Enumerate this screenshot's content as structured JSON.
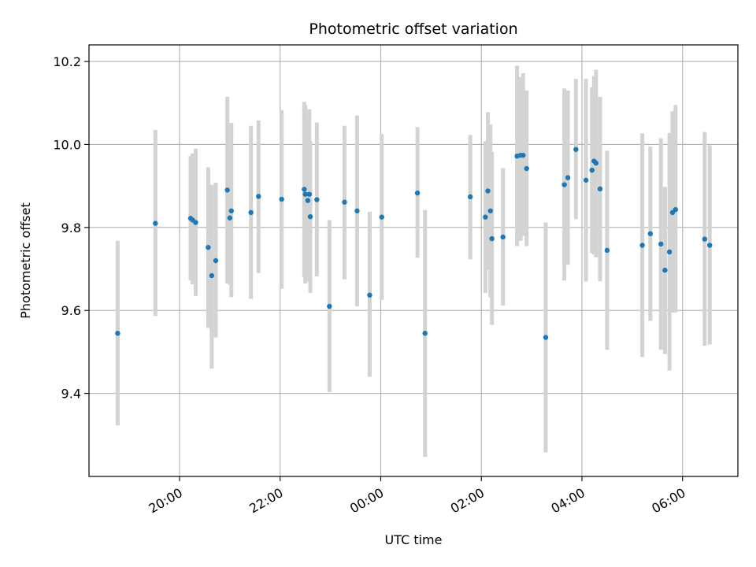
{
  "chart_data": {
    "type": "scatter",
    "title": "Photometric offset variation",
    "xlabel": "UTC time",
    "ylabel": "Photometric offset",
    "x_unit": "hours since 00:00 UTC",
    "xlim": [
      -5.8,
      7.1
    ],
    "ylim": [
      9.2,
      10.24
    ],
    "grid": true,
    "x_ticks": [
      {
        "value": -4,
        "label": "20:00"
      },
      {
        "value": -2,
        "label": "22:00"
      },
      {
        "value": 0,
        "label": "00:00"
      },
      {
        "value": 2,
        "label": "02:00"
      },
      {
        "value": 4,
        "label": "04:00"
      },
      {
        "value": 6,
        "label": "06:00"
      }
    ],
    "y_ticks": [
      {
        "value": 9.4,
        "label": "9.4"
      },
      {
        "value": 9.6,
        "label": "9.6"
      },
      {
        "value": 9.8,
        "label": "9.8"
      },
      {
        "value": 10.0,
        "label": "10.0"
      },
      {
        "value": 10.2,
        "label": "10.2"
      }
    ],
    "colors": {
      "point": "#1f77b4",
      "errorbar": "#d3d3d3",
      "grid": "#b0b0b0"
    },
    "points": [
      {
        "x": -5.23,
        "y": 9.545,
        "lo": 9.323,
        "hi": 9.768
      },
      {
        "x": -4.48,
        "y": 9.81,
        "lo": 9.587,
        "hi": 10.035
      },
      {
        "x": -3.78,
        "y": 9.822,
        "lo": 9.672,
        "hi": 9.972
      },
      {
        "x": -3.74,
        "y": 9.818,
        "lo": 9.663,
        "hi": 9.978
      },
      {
        "x": -3.68,
        "y": 9.812,
        "lo": 9.635,
        "hi": 9.99
      },
      {
        "x": -3.43,
        "y": 9.752,
        "lo": 9.558,
        "hi": 9.945
      },
      {
        "x": -3.36,
        "y": 9.684,
        "lo": 9.46,
        "hi": 9.903
      },
      {
        "x": -3.28,
        "y": 9.72,
        "lo": 9.535,
        "hi": 9.908
      },
      {
        "x": -3.05,
        "y": 9.89,
        "lo": 9.665,
        "hi": 10.115
      },
      {
        "x": -3.0,
        "y": 9.823,
        "lo": 9.662,
        "hi": 9.985
      },
      {
        "x": -2.97,
        "y": 9.84,
        "lo": 9.632,
        "hi": 10.052
      },
      {
        "x": -2.58,
        "y": 9.836,
        "lo": 9.628,
        "hi": 10.045
      },
      {
        "x": -2.43,
        "y": 9.875,
        "lo": 9.69,
        "hi": 10.058
      },
      {
        "x": -1.97,
        "y": 9.868,
        "lo": 9.652,
        "hi": 10.083
      },
      {
        "x": -1.52,
        "y": 9.892,
        "lo": 9.68,
        "hi": 10.103
      },
      {
        "x": -1.5,
        "y": 9.88,
        "lo": 9.665,
        "hi": 10.095
      },
      {
        "x": -1.45,
        "y": 9.865,
        "lo": 9.67,
        "hi": 10.062
      },
      {
        "x": -1.42,
        "y": 9.88,
        "lo": 9.678,
        "hi": 10.085
      },
      {
        "x": -1.4,
        "y": 9.826,
        "lo": 9.642,
        "hi": 10.008
      },
      {
        "x": -1.27,
        "y": 9.867,
        "lo": 9.682,
        "hi": 10.053
      },
      {
        "x": -1.02,
        "y": 9.61,
        "lo": 9.403,
        "hi": 9.818
      },
      {
        "x": -0.72,
        "y": 9.861,
        "lo": 9.675,
        "hi": 10.045
      },
      {
        "x": -0.47,
        "y": 9.84,
        "lo": 9.61,
        "hi": 10.07
      },
      {
        "x": -0.22,
        "y": 9.637,
        "lo": 9.44,
        "hi": 9.838
      },
      {
        "x": 0.02,
        "y": 9.825,
        "lo": 9.625,
        "hi": 10.025
      },
      {
        "x": 0.73,
        "y": 9.883,
        "lo": 9.727,
        "hi": 10.042
      },
      {
        "x": 0.88,
        "y": 9.545,
        "lo": 9.247,
        "hi": 9.842
      },
      {
        "x": 1.78,
        "y": 9.874,
        "lo": 9.723,
        "hi": 10.023
      },
      {
        "x": 2.08,
        "y": 9.825,
        "lo": 9.642,
        "hi": 10.008
      },
      {
        "x": 2.13,
        "y": 9.888,
        "lo": 9.698,
        "hi": 10.078
      },
      {
        "x": 2.18,
        "y": 9.84,
        "lo": 9.632,
        "hi": 10.048
      },
      {
        "x": 2.21,
        "y": 9.773,
        "lo": 9.565,
        "hi": 9.982
      },
      {
        "x": 2.43,
        "y": 9.777,
        "lo": 9.612,
        "hi": 9.943
      },
      {
        "x": 2.71,
        "y": 9.972,
        "lo": 9.755,
        "hi": 10.19
      },
      {
        "x": 2.78,
        "y": 9.974,
        "lo": 9.768,
        "hi": 10.162
      },
      {
        "x": 2.83,
        "y": 9.974,
        "lo": 9.78,
        "hi": 10.172
      },
      {
        "x": 2.9,
        "y": 9.942,
        "lo": 9.755,
        "hi": 10.13
      },
      {
        "x": 3.28,
        "y": 9.535,
        "lo": 9.258,
        "hi": 9.812
      },
      {
        "x": 3.65,
        "y": 9.903,
        "lo": 9.672,
        "hi": 10.135
      },
      {
        "x": 3.72,
        "y": 9.92,
        "lo": 9.71,
        "hi": 10.13
      },
      {
        "x": 3.88,
        "y": 9.988,
        "lo": 9.82,
        "hi": 10.158
      },
      {
        "x": 4.08,
        "y": 9.914,
        "lo": 9.67,
        "hi": 10.158
      },
      {
        "x": 4.2,
        "y": 9.938,
        "lo": 9.738,
        "hi": 10.138
      },
      {
        "x": 4.24,
        "y": 9.96,
        "lo": 9.735,
        "hi": 10.165
      },
      {
        "x": 4.28,
        "y": 9.955,
        "lo": 9.728,
        "hi": 10.18
      },
      {
        "x": 4.36,
        "y": 9.893,
        "lo": 9.67,
        "hi": 10.115
      },
      {
        "x": 4.5,
        "y": 9.745,
        "lo": 9.505,
        "hi": 9.985
      },
      {
        "x": 5.2,
        "y": 9.757,
        "lo": 9.488,
        "hi": 10.027
      },
      {
        "x": 5.36,
        "y": 9.785,
        "lo": 9.575,
        "hi": 9.995
      },
      {
        "x": 5.57,
        "y": 9.76,
        "lo": 9.505,
        "hi": 10.015
      },
      {
        "x": 5.65,
        "y": 9.697,
        "lo": 9.495,
        "hi": 9.898
      },
      {
        "x": 5.74,
        "y": 9.741,
        "lo": 9.455,
        "hi": 10.028
      },
      {
        "x": 5.8,
        "y": 9.836,
        "lo": 9.595,
        "hi": 10.08
      },
      {
        "x": 5.86,
        "y": 9.843,
        "lo": 9.595,
        "hi": 10.095
      },
      {
        "x": 6.44,
        "y": 9.772,
        "lo": 9.515,
        "hi": 10.03
      },
      {
        "x": 6.54,
        "y": 9.757,
        "lo": 9.518,
        "hi": 9.998
      }
    ]
  }
}
